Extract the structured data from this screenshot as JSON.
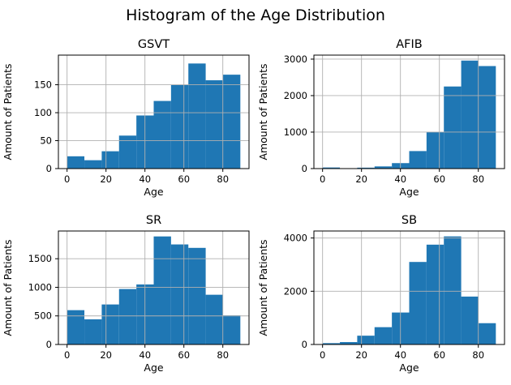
{
  "figure": {
    "suptitle": "Histogram of the Age Distribution"
  },
  "style": {
    "bar_color": "#1f77b4",
    "grid_color": "#b0b0b0",
    "axis_color": "#000000",
    "text_color": "#000000",
    "background": "#ffffff"
  },
  "chart_data": [
    {
      "type": "bar",
      "title": "GSVT",
      "xlabel": "Age",
      "ylabel": "Amount of Patients",
      "bins": {
        "start": 0,
        "end": 89,
        "count": 10
      },
      "values": [
        22,
        15,
        31,
        59,
        95,
        121,
        150,
        188,
        158,
        168
      ],
      "xticks": [
        0,
        20,
        40,
        60,
        80
      ],
      "yticks": [
        0,
        50,
        100,
        150
      ],
      "xlim": [
        -4.45,
        93.45
      ],
      "ylim": [
        0,
        203
      ],
      "grid": true,
      "grid_above_bars": true,
      "legend": "none"
    },
    {
      "type": "bar",
      "title": "AFIB",
      "xlabel": "Age",
      "ylabel": "Amount of Patients",
      "bins": {
        "start": 0,
        "end": 89,
        "count": 10
      },
      "values": [
        30,
        10,
        25,
        60,
        150,
        480,
        1000,
        2250,
        2960,
        2810
      ],
      "xticks": [
        0,
        20,
        40,
        60,
        80
      ],
      "yticks": [
        0,
        1000,
        2000,
        3000
      ],
      "xlim": [
        -4.45,
        93.45
      ],
      "ylim": [
        0,
        3110
      ],
      "grid": true,
      "grid_above_bars": true,
      "legend": "none"
    },
    {
      "type": "bar",
      "title": "SR",
      "xlabel": "Age",
      "ylabel": "Amount of Patients",
      "bins": {
        "start": 0,
        "end": 89,
        "count": 10
      },
      "values": [
        600,
        440,
        700,
        970,
        1050,
        1890,
        1750,
        1690,
        870,
        510
      ],
      "xticks": [
        0,
        20,
        40,
        60,
        80
      ],
      "yticks": [
        0,
        500,
        1000,
        1500
      ],
      "xlim": [
        -4.45,
        93.45
      ],
      "ylim": [
        0,
        1985
      ],
      "grid": true,
      "grid_above_bars": true,
      "legend": "none"
    },
    {
      "type": "bar",
      "title": "SB",
      "xlabel": "Age",
      "ylabel": "Amount of Patients",
      "bins": {
        "start": 0,
        "end": 89,
        "count": 10
      },
      "values": [
        50,
        90,
        330,
        650,
        1200,
        3100,
        3750,
        4060,
        1800,
        800
      ],
      "xticks": [
        0,
        20,
        40,
        60,
        80
      ],
      "yticks": [
        0,
        2000,
        4000
      ],
      "xlim": [
        -4.45,
        93.45
      ],
      "ylim": [
        0,
        4263
      ],
      "grid": true,
      "grid_above_bars": true,
      "legend": "none"
    }
  ]
}
